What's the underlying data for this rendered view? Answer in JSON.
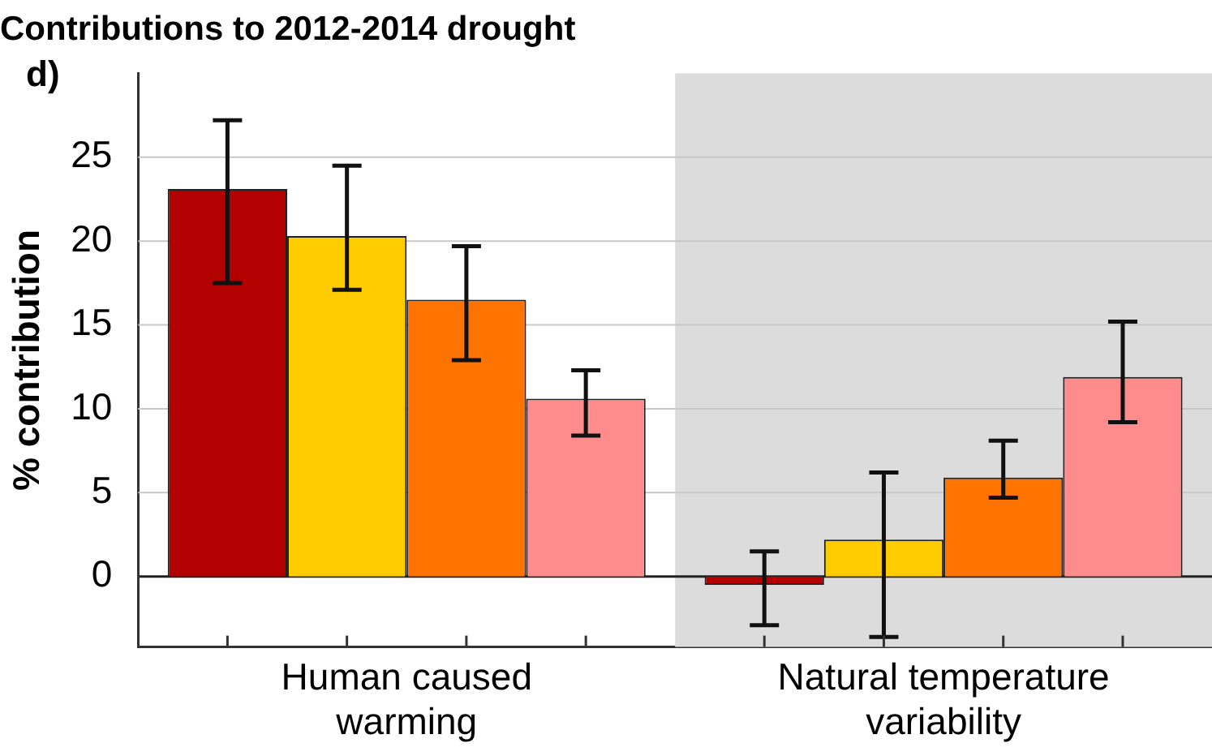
{
  "chart_data": {
    "type": "bar",
    "title": "Contributions to 2012-2014 drought",
    "ylabel": "% contribution",
    "annotations": [
      "d)"
    ],
    "categories": [
      "Human caused warming",
      "Natural temperature variability"
    ],
    "series": [
      {
        "color": "#b30000",
        "values": [
          23.1,
          -0.5
        ],
        "errors": [
          [
            17.5,
            27.2
          ],
          [
            -2.9,
            1.5
          ]
        ]
      },
      {
        "color": "#ffcc00",
        "values": [
          20.3,
          2.2
        ],
        "errors": [
          [
            17.1,
            24.5
          ],
          [
            -3.6,
            6.2
          ]
        ]
      },
      {
        "color": "#ff7300",
        "values": [
          16.5,
          5.9
        ],
        "errors": [
          [
            12.9,
            19.7
          ],
          [
            4.7,
            8.1
          ]
        ]
      },
      {
        "color": "#ff8c8c",
        "values": [
          10.6,
          11.9
        ],
        "errors": [
          [
            8.4,
            12.3
          ],
          [
            9.2,
            15.2
          ]
        ]
      }
    ],
    "ylim": [
      -4.2,
      30
    ],
    "yticks": [
      0,
      5,
      10,
      15,
      20,
      25
    ],
    "grid": "y",
    "legend": false,
    "bands": [
      {
        "axis": "x",
        "from": "Natural temperature variability",
        "to": "Natural temperature variability",
        "color": "#dcdcdc"
      }
    ]
  }
}
